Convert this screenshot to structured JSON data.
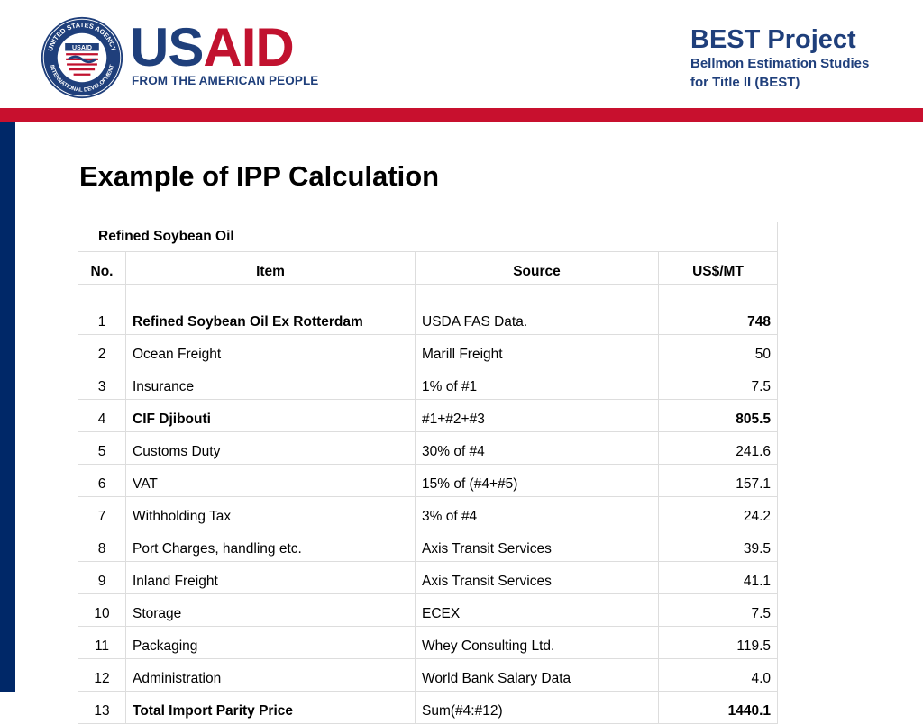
{
  "header": {
    "seal_top_text": "UNITED STATES AGENCY",
    "seal_bottom_text": "INTERNATIONAL DEVELOPMENT",
    "seal_center_text": "USAID",
    "logo_text_part1": "US",
    "logo_text_part2": "AID",
    "logo_tagline": "FROM THE AMERICAN PEOPLE",
    "project_title": "BEST Project",
    "project_subtitle_line1": "Bellmon Estimation Studies",
    "project_subtitle_line2": "for Title II (BEST)"
  },
  "colors": {
    "usaid_blue": "#1f3f7b",
    "usaid_red": "#c1122f",
    "band_red": "#c8102e",
    "side_bar_navy": "#002868"
  },
  "slide": {
    "title": "Example of IPP Calculation"
  },
  "table": {
    "caption": "Refined Soybean Oil",
    "headers": {
      "no": "No.",
      "item": "Item",
      "source": "Source",
      "value": "US$/MT"
    },
    "rows": [
      {
        "no": "1",
        "item": "Refined Soybean Oil Ex Rotterdam",
        "source": "USDA FAS Data.",
        "value": "748",
        "bold": true
      },
      {
        "no": "2",
        "item": "Ocean Freight",
        "source": "Marill Freight",
        "value": "50",
        "bold": false
      },
      {
        "no": "3",
        "item": "Insurance",
        "source": "1% of #1",
        "value": "7.5",
        "bold": false
      },
      {
        "no": "4",
        "item": "CIF Djibouti",
        "source": "#1+#2+#3",
        "value": "805.5",
        "bold": true
      },
      {
        "no": "5",
        "item": "Customs Duty",
        "source": "30% of #4",
        "value": "241.6",
        "bold": false
      },
      {
        "no": "6",
        "item": "VAT",
        "source": "15% of (#4+#5)",
        "value": "157.1",
        "bold": false
      },
      {
        "no": "7",
        "item": "Withholding Tax",
        "source": "3% of #4",
        "value": "24.2",
        "bold": false
      },
      {
        "no": "8",
        "item": "Port Charges, handling etc.",
        "source": "Axis Transit Services",
        "value": "39.5",
        "bold": false
      },
      {
        "no": "9",
        "item": "Inland Freight",
        "source": "Axis Transit Services",
        "value": "41.1",
        "bold": false
      },
      {
        "no": "10",
        "item": "Storage",
        "source": "ECEX",
        "value": "7.5",
        "bold": false
      },
      {
        "no": "11",
        "item": "Packaging",
        "source": "Whey Consulting Ltd.",
        "value": "119.5",
        "bold": false
      },
      {
        "no": "12",
        "item": "Administration",
        "source": "World Bank Salary Data",
        "value": "4.0",
        "bold": false
      },
      {
        "no": "13",
        "item": "Total Import Parity Price",
        "source": "Sum(#4:#12)",
        "value": "1440.1",
        "bold": true
      }
    ]
  }
}
